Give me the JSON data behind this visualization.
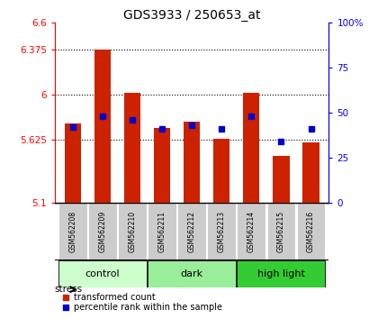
{
  "title": "GDS3933 / 250653_at",
  "samples": [
    "GSM562208",
    "GSM562209",
    "GSM562210",
    "GSM562211",
    "GSM562212",
    "GSM562213",
    "GSM562214",
    "GSM562215",
    "GSM562216"
  ],
  "red_values": [
    5.76,
    6.375,
    6.01,
    5.72,
    5.77,
    5.63,
    6.01,
    5.49,
    5.6
  ],
  "blue_pct": [
    42,
    48,
    46,
    41,
    43,
    41,
    48,
    34,
    41
  ],
  "groups": [
    {
      "label": "control",
      "start": 0,
      "end": 2,
      "color": "#ccffcc"
    },
    {
      "label": "dark",
      "start": 3,
      "end": 5,
      "color": "#99ee99"
    },
    {
      "label": "high light",
      "start": 6,
      "end": 8,
      "color": "#33cc33"
    }
  ],
  "ylim_left": [
    5.1,
    6.6
  ],
  "yticks_left": [
    5.1,
    5.625,
    6.0,
    6.375,
    6.6
  ],
  "ytick_labels_left": [
    "5.1",
    "5.625",
    "6",
    "6.375",
    "6.6"
  ],
  "yticks_right": [
    0,
    25,
    50,
    75,
    100
  ],
  "ytick_labels_right": [
    "0",
    "25",
    "50",
    "75",
    "100%"
  ],
  "grid_lines": [
    5.625,
    6.0,
    6.375
  ],
  "bar_color": "#cc2200",
  "dot_color": "#0000cc",
  "bar_bottom": 5.1,
  "stress_label": "stress",
  "legend_red": "transformed count",
  "legend_blue": "percentile rank within the sample",
  "sample_box_color": "#cccccc",
  "group_colors": [
    "#ccffcc",
    "#99ee99",
    "#33cc33"
  ],
  "group_labels": [
    "control",
    "dark",
    "high light"
  ],
  "group_starts": [
    0,
    3,
    6
  ],
  "group_ends": [
    2,
    5,
    8
  ]
}
